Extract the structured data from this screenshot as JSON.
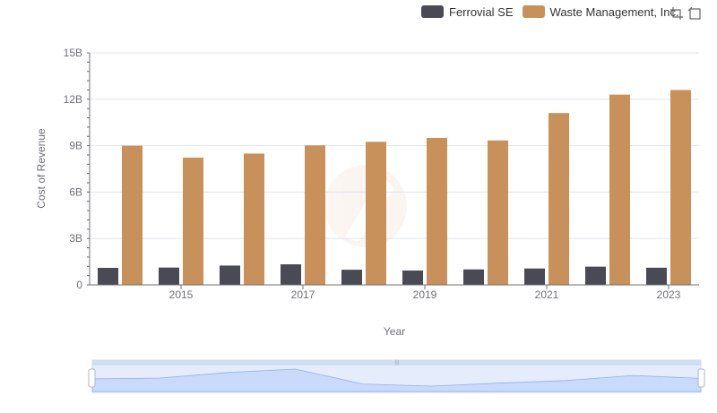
{
  "legend": {
    "items": [
      {
        "name": "Ferrovial SE",
        "color": "#4a4a55"
      },
      {
        "name": "Waste Management, Inc.",
        "color": "#c8915c"
      }
    ]
  },
  "toolbox": {
    "icons": [
      "zoom-icon",
      "reset-icon"
    ]
  },
  "chart_data": {
    "type": "bar",
    "xlabel": "Year",
    "ylabel": "Cost of Revenue",
    "categories": [
      "2014",
      "2015",
      "2016",
      "2017",
      "2018",
      "2019",
      "2020",
      "2021",
      "2022",
      "2023"
    ],
    "x_tick_labels": [
      "2015",
      "2017",
      "2019",
      "2021",
      "2023"
    ],
    "y_tick_labels": [
      "0",
      "3B",
      "6B",
      "9B",
      "12B",
      "15B"
    ],
    "ylim": [
      0,
      15000000000
    ],
    "grid": true,
    "legend_position": "top-right",
    "series": [
      {
        "name": "Ferrovial SE",
        "color": "#4a4a55",
        "values": [
          1100000000,
          1120000000,
          1250000000,
          1330000000,
          980000000,
          930000000,
          1000000000,
          1060000000,
          1180000000,
          1110000000
        ]
      },
      {
        "name": "Waste Management, Inc.",
        "color": "#c8915c",
        "values": [
          9000000000,
          8230000000,
          8490000000,
          9020000000,
          9250000000,
          9500000000,
          9340000000,
          11110000000,
          12300000000,
          12600000000
        ]
      }
    ]
  }
}
